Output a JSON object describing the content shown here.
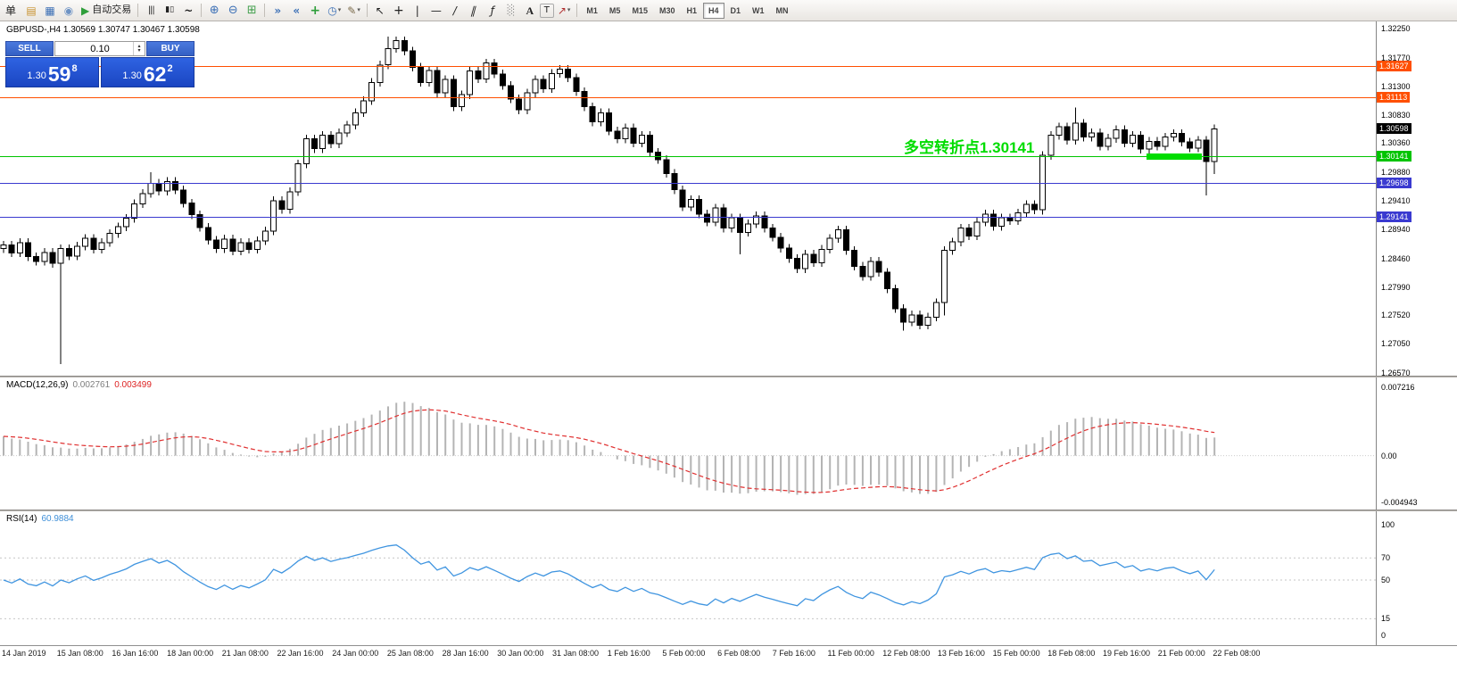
{
  "toolbar": {
    "menu_char": "单",
    "auto_trading_label": "自动交易",
    "icons": {
      "caret": "▾",
      "spin_up": "▴",
      "spin_down": "▾",
      "new_order": "▤",
      "charts_window": "▦",
      "community": "◉",
      "auto_play": "▶",
      "bars": "|||",
      "candles": "▮▯",
      "line_chart": "~",
      "zoom_in": "⊕",
      "zoom_out": "⊖",
      "tile_windows": "⊞",
      "auto_scroll": "»",
      "chart_shift": "«",
      "new_chart": "+",
      "period": "◷",
      "templates": "✎",
      "cursor": "↖",
      "crosshair": "+",
      "vline": "|",
      "hline": "—",
      "trendline": "/",
      "channel": "∥",
      "fibonacci": "ƒ",
      "shapes": "░",
      "text": "A",
      "label": "T",
      "arrows": "↗"
    },
    "timeframes": [
      {
        "label": "M1"
      },
      {
        "label": "M5"
      },
      {
        "label": "M15"
      },
      {
        "label": "M30"
      },
      {
        "label": "H1"
      },
      {
        "label": "H4",
        "active": true
      },
      {
        "label": "D1"
      },
      {
        "label": "W1"
      },
      {
        "label": "MN"
      }
    ]
  },
  "trade_panel": {
    "sell_label": "SELL",
    "buy_label": "BUY",
    "volume": "0.10",
    "sell_price": {
      "prefix": "1.30",
      "big": "59",
      "sup": "8"
    },
    "buy_price": {
      "prefix": "1.30",
      "big": "62",
      "sup": "2"
    }
  },
  "chart_data": {
    "type": "candlestick",
    "symbol": "GBPUSD-",
    "timeframe": "H4",
    "header_label": "GBPUSD-,H4  1.30569 1.30747 1.30467 1.30598",
    "ohlc": {
      "open": "1.30569",
      "high": "1.30747",
      "low": "1.30467",
      "close": "1.30598"
    },
    "price_range": [
      1.2657,
      1.3225
    ],
    "price_axis_ticks": [
      "1.32250",
      "1.31770",
      "1.31300",
      "1.30830",
      "1.30360",
      "1.29880",
      "1.29410",
      "1.28940",
      "1.28460",
      "1.27990",
      "1.27520",
      "1.27050",
      "1.26570"
    ],
    "levels": [
      {
        "price": 1.31627,
        "label": "1.31627",
        "color": "#ff4f00"
      },
      {
        "price": 1.31113,
        "label": "1.31113",
        "color": "#ff4f00"
      },
      {
        "price": 1.30141,
        "label": "1.30141",
        "color": "#00c400"
      },
      {
        "price": 1.29698,
        "label": "1.29698",
        "color": "#3a3ad0"
      },
      {
        "price": 1.29141,
        "label": "1.29141",
        "color": "#3a3ad0"
      }
    ],
    "current_price": {
      "value": 1.30598,
      "label": "1.30598",
      "bg": "#000000"
    },
    "annotation": {
      "text": "多空转折点1.30141",
      "color": "#00dd00"
    },
    "closes": [
      1.2868,
      1.2855,
      1.2872,
      1.2849,
      1.2841,
      1.2856,
      1.2838,
      1.2862,
      1.285,
      1.2866,
      1.2879,
      1.2861,
      1.2872,
      1.2887,
      1.2898,
      1.2912,
      1.2936,
      1.2953,
      1.297,
      1.2957,
      1.2973,
      1.2959,
      1.2937,
      1.2918,
      1.2897,
      1.2876,
      1.2862,
      1.2878,
      1.2858,
      1.2872,
      1.2861,
      1.2875,
      1.2891,
      1.2941,
      1.2927,
      1.2956,
      1.3002,
      1.3043,
      1.3027,
      1.3049,
      1.3035,
      1.3053,
      1.3066,
      1.3086,
      1.3106,
      1.3136,
      1.3165,
      1.3192,
      1.3205,
      1.3188,
      1.3161,
      1.3136,
      1.3156,
      1.3119,
      1.3141,
      1.3096,
      1.3116,
      1.3155,
      1.3142,
      1.3168,
      1.315,
      1.3131,
      1.3109,
      1.3091,
      1.3119,
      1.3141,
      1.3126,
      1.3151,
      1.3158,
      1.3144,
      1.3121,
      1.3096,
      1.3071,
      1.3086,
      1.3056,
      1.3043,
      1.3061,
      1.3036,
      1.3049,
      1.3021,
      1.3009,
      1.2986,
      1.2959,
      1.2931,
      1.2943,
      1.2919,
      1.2906,
      1.2929,
      1.2896,
      1.2913,
      1.2889,
      1.2903,
      1.2916,
      1.2896,
      1.2881,
      1.2863,
      1.2846,
      1.2829,
      1.2853,
      1.2839,
      1.2861,
      1.2879,
      1.2893,
      1.2859,
      1.2833,
      1.2816,
      1.2841,
      1.2823,
      1.2796,
      1.2763,
      1.2741,
      1.2753,
      1.2736,
      1.2749,
      1.2773,
      1.2859,
      1.2873,
      1.2896,
      1.2883,
      1.2906,
      1.2919,
      1.2899,
      1.2913,
      1.2908,
      1.2921,
      1.2935,
      1.2926,
      1.3016,
      1.3049,
      1.3063,
      1.3041,
      1.3069,
      1.3046,
      1.3053,
      1.3031,
      1.3044,
      1.3058,
      1.3036,
      1.3049,
      1.3026,
      1.3039,
      1.3031,
      1.3046,
      1.3052,
      1.3038,
      1.3028,
      1.3041,
      1.3006,
      1.30598
    ],
    "wick_overrides": {
      "7": {
        "l": 1.2672
      },
      "18": {
        "h": 1.2988
      },
      "47": {
        "h": 1.3212
      },
      "90": {
        "l": 1.2853
      },
      "110": {
        "l": 1.2727
      },
      "115": {
        "l": 1.2752
      },
      "127": {
        "l": 1.2918
      },
      "131": {
        "h": 1.3095
      },
      "147": {
        "l": 1.295
      },
      "148": {
        "l": 1.2985
      }
    },
    "macd": {
      "name": "MACD(12,26,9)",
      "value": "0.002761",
      "signal": "0.003499",
      "axis_ticks": [
        "0.007216",
        "0.00",
        "-0.004943"
      ],
      "axis_range": [
        -0.004943,
        0.007216
      ],
      "histogram_color": "#b4b4b4",
      "signal_color": "#e03030"
    },
    "rsi": {
      "name": "RSI(14)",
      "value": "60.9884",
      "axis_ticks": [
        "100",
        "70",
        "50",
        "15",
        "0"
      ],
      "levels": [
        70,
        50,
        15
      ],
      "line_color": "#4095e0"
    },
    "time_labels": [
      "14 Jan 2019",
      "15 Jan 08:00",
      "16 Jan 16:00",
      "18 Jan 00:00",
      "21 Jan 08:00",
      "22 Jan 16:00",
      "24 Jan 00:00",
      "25 Jan 08:00",
      "28 Jan 16:00",
      "30 Jan 00:00",
      "31 Jan 08:00",
      "1 Feb 16:00",
      "5 Feb 00:00",
      "6 Feb 08:00",
      "7 Feb 16:00",
      "11 Feb 00:00",
      "12 Feb 08:00",
      "13 Feb 16:00",
      "15 Feb 00:00",
      "18 Feb 08:00",
      "19 Feb 16:00",
      "21 Feb 00:00",
      "22 Feb 08:00"
    ]
  }
}
